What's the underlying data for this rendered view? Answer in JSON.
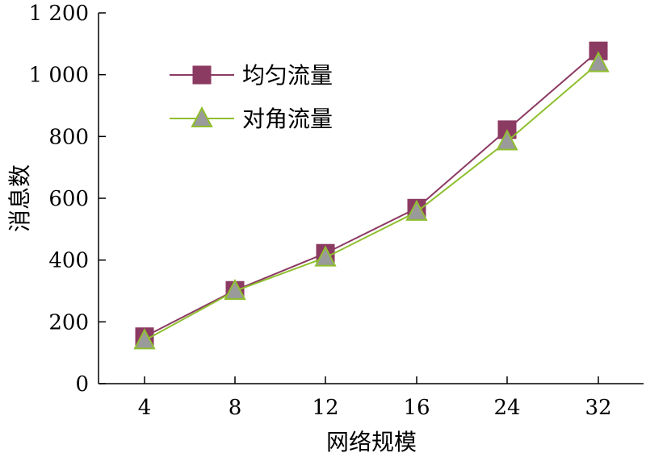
{
  "chart_data": {
    "type": "line",
    "categories": [
      "4",
      "8",
      "12",
      "16",
      "24",
      "32"
    ],
    "xlabel": "网络规模",
    "ylabel": "消息数",
    "ylim": [
      0,
      1200
    ],
    "yticks": [
      0,
      200,
      400,
      600,
      800,
      1000,
      1200
    ],
    "ytick_labels": [
      "0",
      "200",
      "400",
      "600",
      "800",
      "1 000",
      "1 200"
    ],
    "legend_position": "top-left",
    "grid": false,
    "series": [
      {
        "name": "均匀流量",
        "marker": "square",
        "color": "#8b3a62",
        "values": [
          152,
          302,
          422,
          568,
          822,
          1077
        ]
      },
      {
        "name": "对角流量",
        "marker": "triangle",
        "color": "#8fbf2f",
        "marker_fill": "#9a9a9a",
        "values": [
          140,
          300,
          408,
          556,
          784,
          1037
        ]
      }
    ]
  }
}
